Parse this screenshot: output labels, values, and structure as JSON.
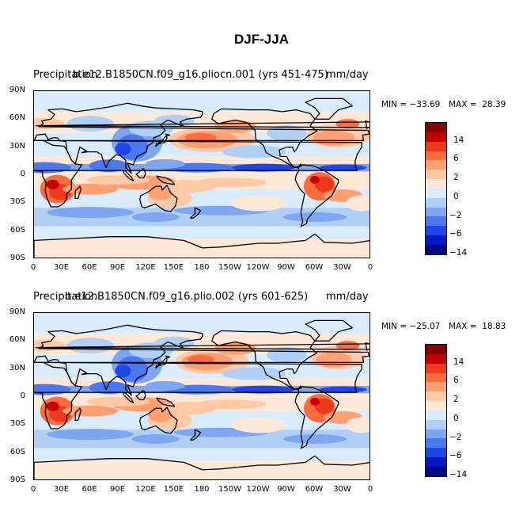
{
  "figure": {
    "title": "DJF-JJA"
  },
  "lat_ticks": [
    "90N",
    "60N",
    "30N",
    "0",
    "30S",
    "60S",
    "90S"
  ],
  "lon_ticks": [
    "0",
    "30E",
    "60E",
    "90E",
    "120E",
    "150E",
    "180",
    "150W",
    "120W",
    "90W",
    "60W",
    "30W",
    "0"
  ],
  "colorbar": {
    "colors": [
      "#850000",
      "#C40000",
      "#EB3A1E",
      "#FA6B3E",
      "#FF9F72",
      "#FFC9A6",
      "#FFE8D6",
      "#D9EBFF",
      "#B0CFF5",
      "#7FA6F0",
      "#4B78EE",
      "#1F47E8",
      "#0019C2",
      "#000883"
    ],
    "labels": [
      "14",
      "6",
      "2",
      "0",
      "−2",
      "−6",
      "−14"
    ]
  },
  "panels": [
    {
      "left_title": "Precipitation",
      "overlay_title": "b.e12.B1850CN.f09_g16.pliocn.001 (yrs 451-475)",
      "right_title": "mm/day",
      "min_text": "MIN = −33.69",
      "max_text": "MAX =  28.39"
    },
    {
      "left_title": "Precipitation",
      "overlay_title": "b.e12.B1850CN.f09_g16.plio.002 (yrs 601-625)",
      "right_title": "mm/day",
      "min_text": "MIN = −25.07",
      "max_text": "MAX =  18.83"
    }
  ]
}
